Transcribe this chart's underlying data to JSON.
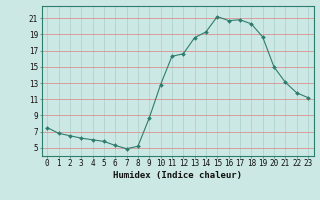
{
  "x": [
    0,
    1,
    2,
    3,
    4,
    5,
    6,
    7,
    8,
    9,
    10,
    11,
    12,
    13,
    14,
    15,
    16,
    17,
    18,
    19,
    20,
    21,
    22,
    23
  ],
  "y": [
    7.5,
    6.8,
    6.5,
    6.2,
    6.0,
    5.8,
    5.3,
    4.9,
    5.2,
    8.7,
    12.8,
    16.3,
    16.6,
    18.6,
    19.3,
    21.2,
    20.7,
    20.8,
    20.3,
    18.7,
    15.0,
    13.1,
    11.8,
    11.2
  ],
  "line_color": "#2d7d6e",
  "marker": "D",
  "marker_size": 2,
  "bg_color": "#cce8e4",
  "grid_hcolor": "#e08080",
  "grid_vcolor": "#aacfcb",
  "xlabel": "Humidex (Indice chaleur)",
  "xlim": [
    -0.5,
    23.5
  ],
  "ylim": [
    4.0,
    22.5
  ],
  "yticks": [
    5,
    7,
    9,
    11,
    13,
    15,
    17,
    19,
    21
  ],
  "xticks": [
    0,
    1,
    2,
    3,
    4,
    5,
    6,
    7,
    8,
    9,
    10,
    11,
    12,
    13,
    14,
    15,
    16,
    17,
    18,
    19,
    20,
    21,
    22,
    23
  ],
  "label_fontsize": 6.5,
  "tick_fontsize": 5.5
}
